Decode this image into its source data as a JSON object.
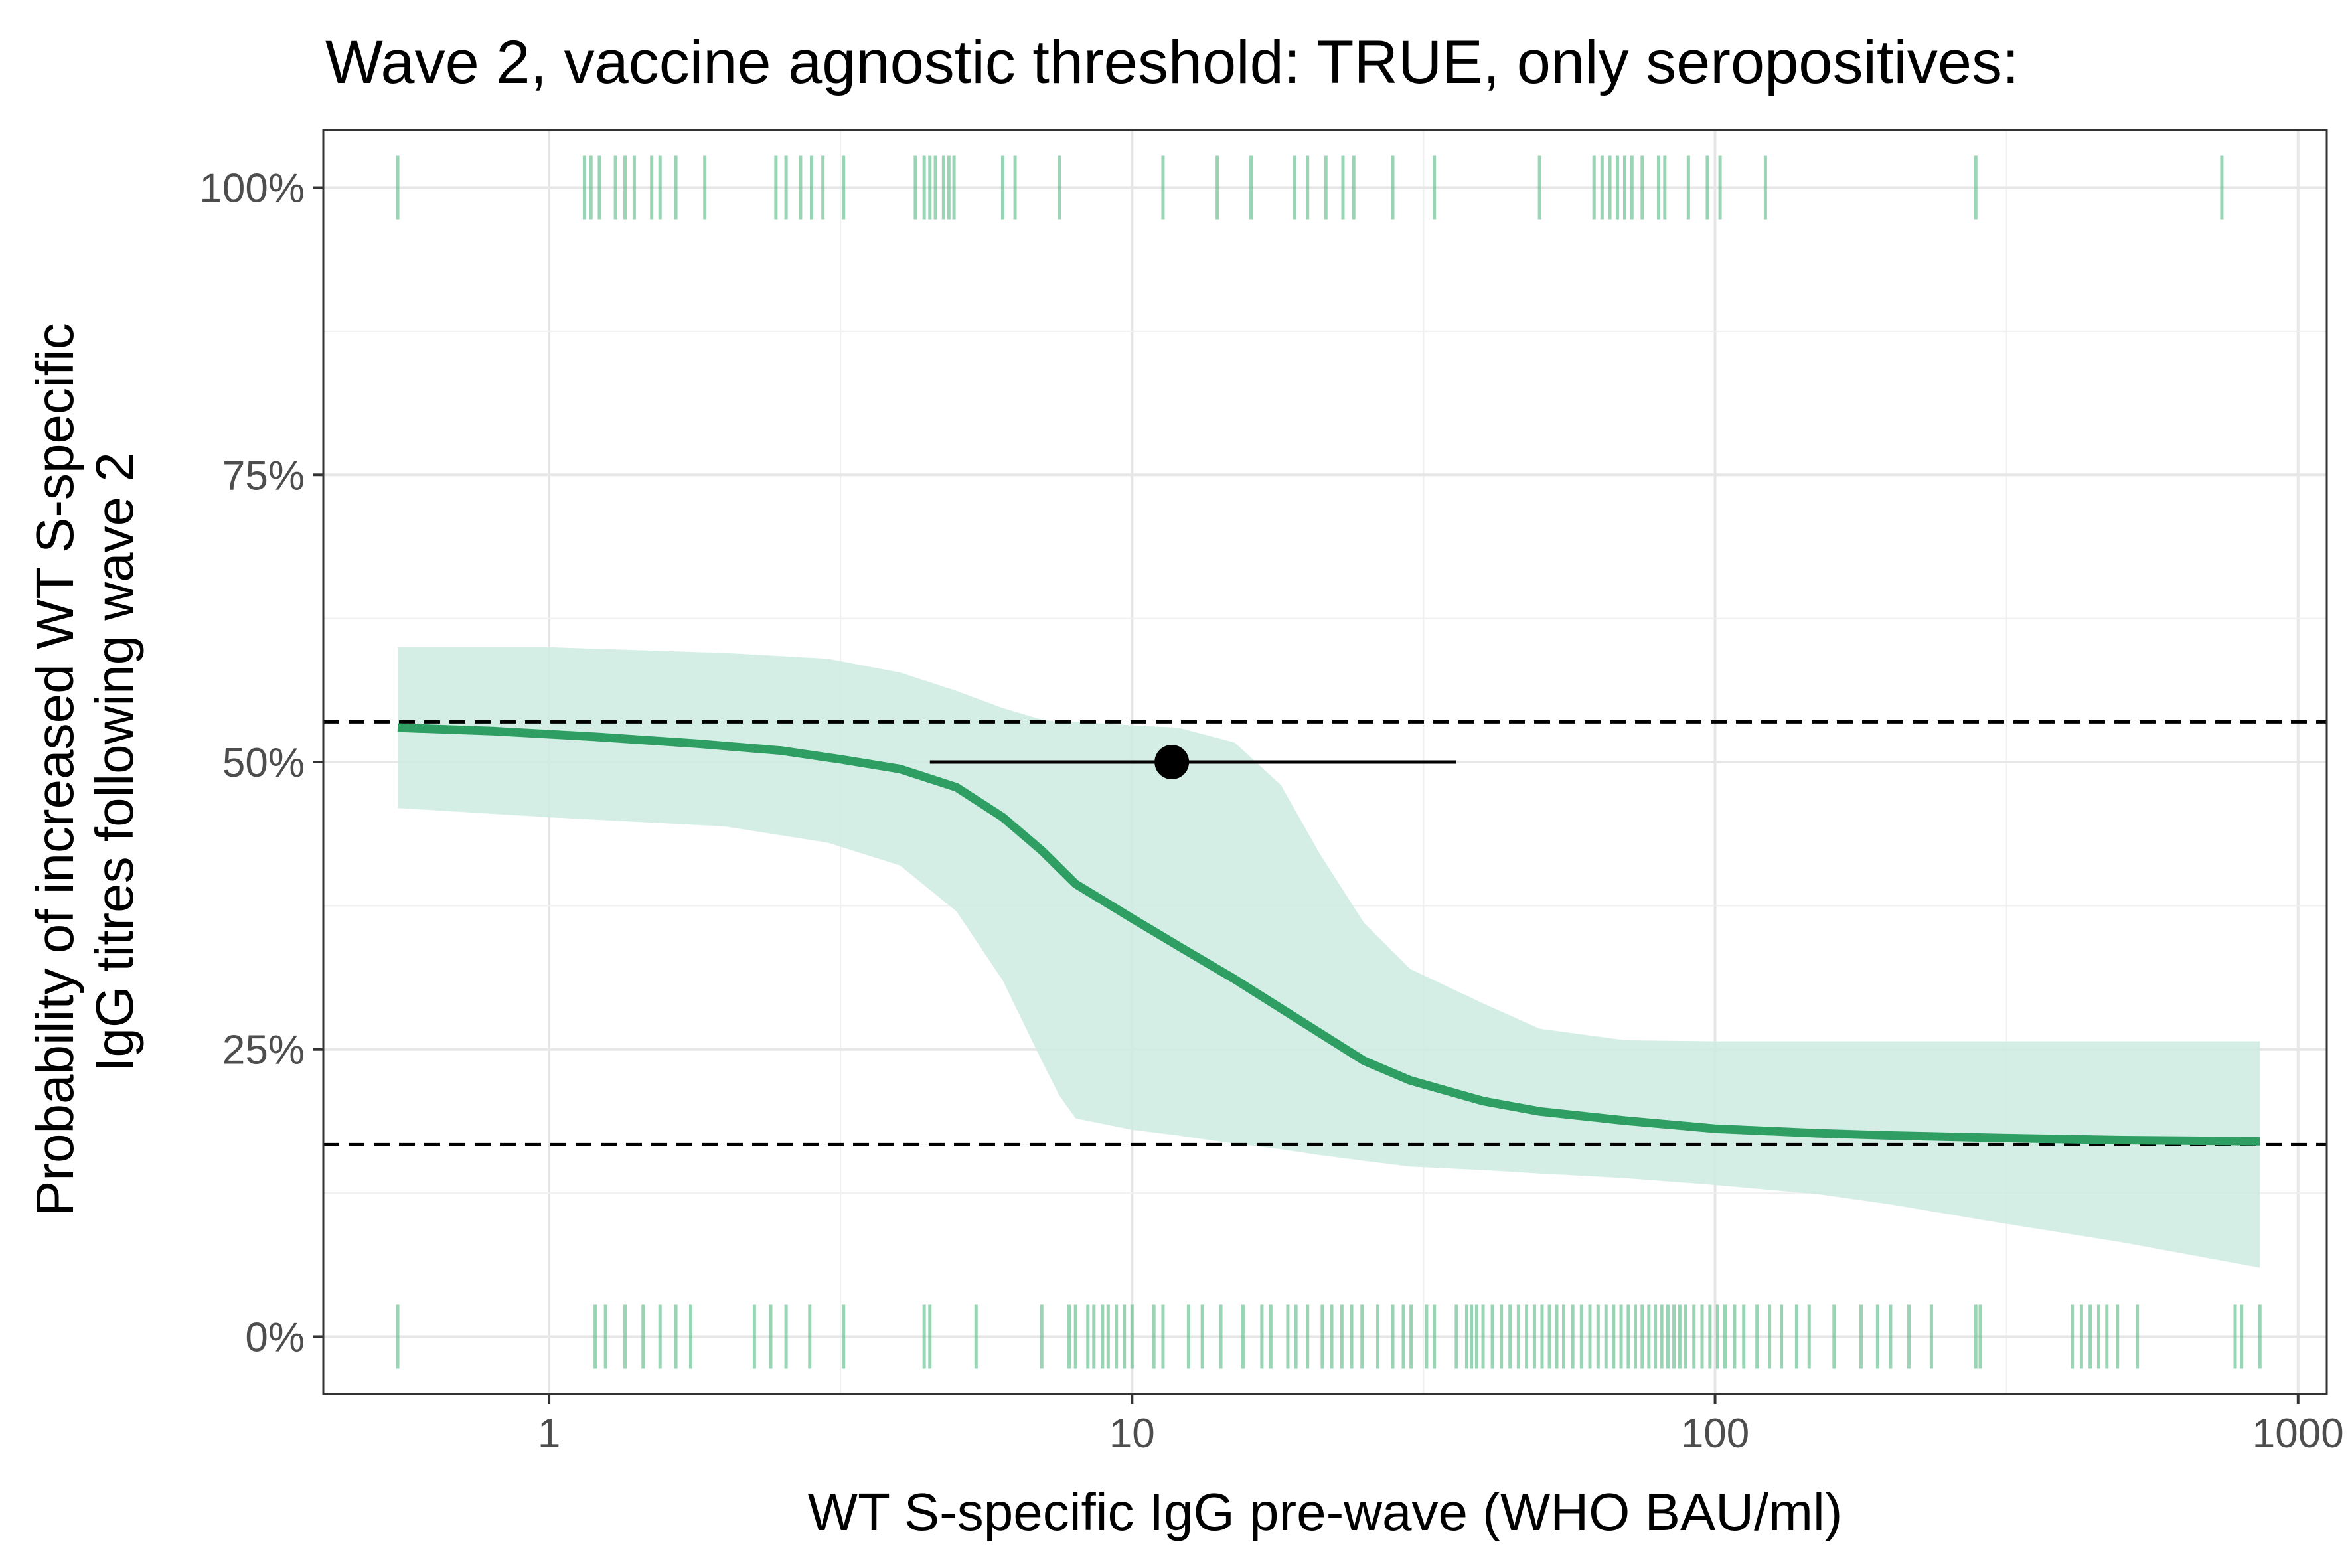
{
  "chart_data": {
    "type": "line",
    "title": "Wave 2, vaccine agnostic threshold: TRUE, only seropositives:",
    "xlabel": "WT S-specific IgG pre-wave (WHO BAU/ml)",
    "ylabel_lines": [
      "Probability of increased WT S-specific",
      "IgG titres following wave 2"
    ],
    "x_scale": "log10",
    "xlim": [
      0.41,
      1120
    ],
    "ylim": [
      -0.05,
      1.05
    ],
    "x_ticks": [
      1,
      10,
      100,
      1000
    ],
    "x_tick_labels": [
      "1",
      "10",
      "100",
      "1000"
    ],
    "y_ticks": [
      0,
      0.25,
      0.5,
      0.75,
      1.0
    ],
    "y_tick_labels": [
      "0%",
      "25%",
      "50%",
      "75%",
      "100%"
    ],
    "grid": true,
    "colors": {
      "curve": "#2e9e62",
      "ribbon": "#cdebe2",
      "rug": "#55b783",
      "reference": "#000000",
      "point": "#000000"
    },
    "fit_curve": {
      "x": [
        0.55,
        0.8,
        1.2,
        1.8,
        2.5,
        3.2,
        4.0,
        5.0,
        6.0,
        7.0,
        8.0,
        10.0,
        12.0,
        15.0,
        20.0,
        25.0,
        30.0,
        40.0,
        50.0,
        70.0,
        100.0,
        150.0,
        200.0,
        300.0,
        500.0,
        860.0
      ],
      "y": [
        0.53,
        0.527,
        0.522,
        0.516,
        0.51,
        0.502,
        0.494,
        0.478,
        0.452,
        0.423,
        0.394,
        0.364,
        0.34,
        0.311,
        0.271,
        0.24,
        0.223,
        0.205,
        0.196,
        0.188,
        0.181,
        0.177,
        0.175,
        0.173,
        0.171,
        0.17
      ]
    },
    "ribbon": {
      "x": [
        0.55,
        1.0,
        2.0,
        3.0,
        4.0,
        5.0,
        6.0,
        7.0,
        7.5,
        8.0,
        10.0,
        12.0,
        15.0,
        18.0,
        21.0,
        25.0,
        30.0,
        40.0,
        50.0,
        70.0,
        100.0,
        150.0,
        200.0,
        300.0,
        500.0,
        860.0
      ],
      "lower": [
        0.46,
        0.452,
        0.444,
        0.43,
        0.41,
        0.37,
        0.31,
        0.24,
        0.21,
        0.19,
        0.18,
        0.175,
        0.168,
        0.163,
        0.158,
        0.153,
        0.148,
        0.145,
        0.142,
        0.138,
        0.132,
        0.124,
        0.115,
        0.1,
        0.082,
        0.06
      ],
      "upper": [
        0.6,
        0.6,
        0.595,
        0.59,
        0.578,
        0.562,
        0.547,
        0.537,
        0.535,
        0.535,
        0.532,
        0.53,
        0.517,
        0.48,
        0.42,
        0.36,
        0.32,
        0.29,
        0.268,
        0.258,
        0.257,
        0.257,
        0.257,
        0.257,
        0.257,
        0.257
      ]
    },
    "reference_lines": [
      0.535,
      0.167
    ],
    "point_estimate": {
      "x": 11.7,
      "y": 0.5,
      "x_low": 4.5,
      "x_high": 36.0
    },
    "rug_top": [
      0.55,
      1.15,
      1.18,
      1.22,
      1.3,
      1.35,
      1.4,
      1.5,
      1.55,
      1.65,
      1.85,
      2.45,
      2.55,
      2.7,
      2.82,
      2.95,
      3.2,
      4.25,
      4.4,
      4.5,
      4.6,
      4.75,
      4.85,
      4.95,
      6.0,
      6.3,
      7.5,
      11.3,
      14.0,
      16.0,
      19.0,
      20.0,
      21.5,
      23.0,
      24.0,
      28.0,
      33.0,
      50.0,
      62.0,
      64.0,
      66.0,
      68.0,
      70.0,
      72.0,
      75.0,
      80.0,
      82.0,
      90.0,
      97.0,
      102.0,
      122.0,
      280.0,
      740.0
    ],
    "rug_bottom": [
      0.55,
      1.2,
      1.25,
      1.35,
      1.45,
      1.55,
      1.65,
      1.75,
      2.25,
      2.4,
      2.55,
      2.8,
      3.2,
      4.4,
      4.5,
      5.4,
      7.0,
      7.8,
      8.0,
      8.4,
      8.6,
      8.9,
      9.1,
      9.4,
      9.7,
      10.0,
      10.9,
      11.3,
      12.5,
      13.2,
      14.2,
      15.5,
      16.7,
      17.3,
      18.5,
      19.1,
      20.0,
      21.2,
      22.0,
      22.9,
      23.8,
      24.8,
      26.4,
      28.0,
      29.2,
      30.1,
      32.0,
      33.0,
      36.0,
      37.5,
      38.2,
      39.0,
      40.0,
      41.5,
      43.0,
      44.5,
      46.0,
      47.5,
      49.0,
      50.5,
      52.0,
      53.5,
      55.0,
      57.0,
      59.0,
      61.0,
      63.0,
      65.0,
      67.0,
      69.0,
      71.0,
      73.0,
      75.0,
      77.0,
      79.0,
      81.0,
      83.0,
      85.0,
      87.0,
      89.0,
      92.0,
      95.0,
      98.0,
      101.0,
      104.0,
      108.0,
      112.0,
      118.0,
      124.0,
      130.0,
      138.0,
      145.0,
      160.0,
      178.0,
      190.0,
      200.0,
      215.0,
      235.0,
      280.0,
      285.0,
      410.0,
      425.0,
      440.0,
      455.0,
      470.0,
      490.0,
      530.0,
      780.0,
      800.0,
      860.0
    ]
  }
}
